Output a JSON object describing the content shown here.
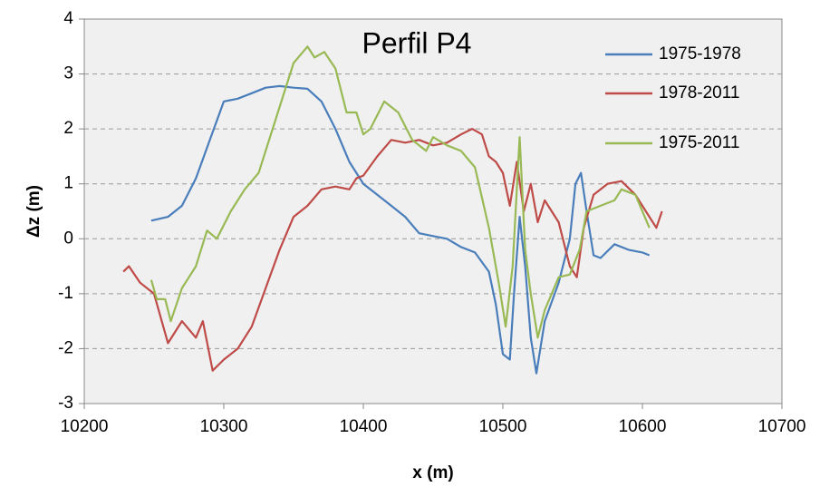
{
  "chart_data": {
    "type": "line",
    "title": "Perfil P4",
    "xlabel": "x (m)",
    "ylabel": "Δz (m)",
    "xlim": [
      10200,
      10700
    ],
    "xticks": [
      10200,
      10300,
      10400,
      10500,
      10600,
      10700
    ],
    "ylim": [
      -3,
      4
    ],
    "yticks": [
      -3,
      -2,
      -1,
      0,
      1,
      2,
      3,
      4
    ],
    "grid": true,
    "series": [
      {
        "name": "1975-1978",
        "color": "#4a7ebb",
        "x": [
          10248,
          10260,
          10270,
          10280,
          10290,
          10300,
          10310,
          10320,
          10330,
          10340,
          10350,
          10360,
          10370,
          10380,
          10390,
          10400,
          10410,
          10420,
          10430,
          10440,
          10450,
          10460,
          10470,
          10480,
          10490,
          10495,
          10500,
          10505,
          10508,
          10512,
          10516,
          10520,
          10524,
          10530,
          10540,
          10548,
          10552,
          10556,
          10560,
          10565,
          10570,
          10580,
          10590,
          10600,
          10605
        ],
        "values": [
          0.33,
          0.4,
          0.6,
          1.1,
          1.8,
          2.5,
          2.55,
          2.65,
          2.75,
          2.78,
          2.75,
          2.73,
          2.5,
          2.0,
          1.4,
          1.0,
          0.8,
          0.6,
          0.4,
          0.1,
          0.05,
          0.0,
          -0.15,
          -0.25,
          -0.6,
          -1.2,
          -2.1,
          -2.2,
          -1.0,
          0.4,
          -0.5,
          -1.8,
          -2.45,
          -1.5,
          -0.8,
          0.0,
          1.0,
          1.2,
          0.5,
          -0.3,
          -0.35,
          -0.1,
          -0.2,
          -0.25,
          -0.3
        ]
      },
      {
        "name": "1978-2011",
        "color": "#be4b48",
        "x": [
          10228,
          10232,
          10240,
          10250,
          10260,
          10270,
          10280,
          10285,
          10292,
          10300,
          10310,
          10320,
          10330,
          10340,
          10350,
          10360,
          10370,
          10380,
          10390,
          10395,
          10400,
          10410,
          10420,
          10430,
          10440,
          10450,
          10460,
          10470,
          10478,
          10485,
          10490,
          10495,
          10500,
          10505,
          10510,
          10515,
          10520,
          10525,
          10530,
          10540,
          10548,
          10553,
          10558,
          10565,
          10575,
          10585,
          10595,
          10605,
          10610,
          10614
        ],
        "values": [
          -0.6,
          -0.5,
          -0.8,
          -1.0,
          -1.9,
          -1.5,
          -1.8,
          -1.5,
          -2.4,
          -2.2,
          -2.0,
          -1.6,
          -0.9,
          -0.2,
          0.4,
          0.6,
          0.9,
          0.95,
          0.9,
          1.1,
          1.15,
          1.5,
          1.8,
          1.75,
          1.8,
          1.7,
          1.75,
          1.9,
          2.0,
          1.9,
          1.5,
          1.4,
          1.2,
          0.6,
          1.4,
          0.5,
          1.0,
          0.3,
          0.7,
          0.3,
          -0.5,
          -0.7,
          0.2,
          0.8,
          1.0,
          1.05,
          0.8,
          0.4,
          0.2,
          0.5
        ]
      },
      {
        "name": "1975-2011",
        "color": "#98b954",
        "x": [
          10248,
          10252,
          10258,
          10262,
          10270,
          10280,
          10288,
          10295,
          10305,
          10315,
          10325,
          10335,
          10345,
          10350,
          10360,
          10365,
          10372,
          10380,
          10388,
          10395,
          10400,
          10405,
          10415,
          10425,
          10435,
          10445,
          10450,
          10460,
          10470,
          10480,
          10490,
          10497,
          10502,
          10507,
          10512,
          10516,
          10520,
          10525,
          10530,
          10540,
          10548,
          10555,
          10560,
          10570,
          10580,
          10585,
          10595,
          10605
        ],
        "values": [
          -0.75,
          -1.1,
          -1.1,
          -1.5,
          -0.9,
          -0.5,
          0.15,
          0.0,
          0.5,
          0.9,
          1.2,
          2.0,
          2.8,
          3.2,
          3.5,
          3.3,
          3.4,
          3.1,
          2.3,
          2.3,
          1.9,
          2.0,
          2.5,
          2.3,
          1.8,
          1.6,
          1.85,
          1.7,
          1.6,
          1.3,
          0.2,
          -0.8,
          -1.6,
          -0.5,
          1.85,
          -0.2,
          -1.0,
          -1.8,
          -1.3,
          -0.7,
          -0.65,
          -0.2,
          0.5,
          0.6,
          0.7,
          0.9,
          0.8,
          0.2
        ]
      }
    ]
  }
}
